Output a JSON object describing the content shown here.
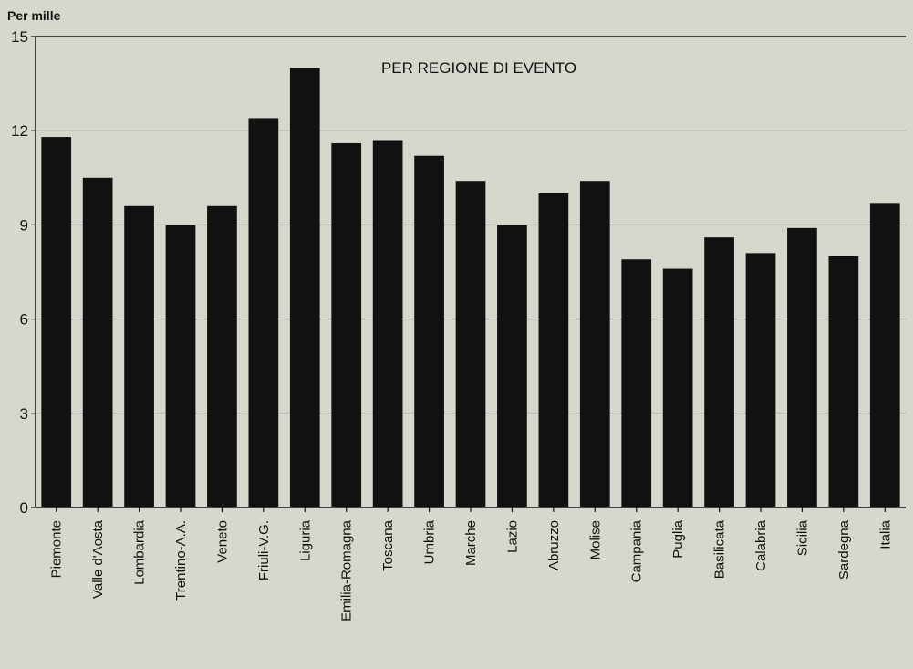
{
  "chart_data": {
    "type": "bar",
    "title": "PER REGIONE DI EVENTO",
    "ylabel": "Per mille",
    "xlabel": "",
    "ylim": [
      0,
      15
    ],
    "yticks": [
      0,
      3,
      6,
      9,
      12,
      15
    ],
    "grid": true,
    "categories": [
      "Piemonte",
      "Valle d'Aosta",
      "Lombardia",
      "Trentino-A.A.",
      "Veneto",
      "Friuli-V.G.",
      "Liguria",
      "Emilia-Romagna",
      "Toscana",
      "Umbria",
      "Marche",
      "Lazio",
      "Abruzzo",
      "Molise",
      "Campania",
      "Puglia",
      "Basilicata",
      "Calabria",
      "Sicilia",
      "Sardegna",
      "Italia"
    ],
    "values": [
      11.8,
      10.5,
      9.6,
      9.0,
      9.6,
      12.4,
      14.0,
      11.6,
      11.7,
      11.2,
      10.4,
      9.0,
      10.0,
      10.4,
      7.9,
      7.6,
      8.6,
      8.1,
      8.9,
      8.0,
      9.7
    ],
    "colors": {
      "bar": "#111111",
      "background": "#d6d8cd",
      "grid": "#9ea39a"
    }
  }
}
